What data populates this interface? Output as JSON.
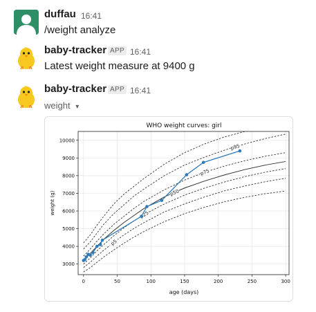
{
  "messages": [
    {
      "user": "duffau",
      "time": "16:41",
      "text": "/weight analyze"
    },
    {
      "user": "baby-tracker",
      "badge": "APP",
      "time": "16:41",
      "text": "Latest weight measure at 9400 g"
    },
    {
      "user": "baby-tracker",
      "badge": "APP",
      "time": "16:41",
      "file_label": "weight",
      "file_caret": "▾"
    }
  ],
  "chart_data": {
    "type": "line",
    "title": "WHO weight curves: girl",
    "xlabel": "age (days)",
    "ylabel": "weight (g)",
    "xlim": [
      -8,
      305
    ],
    "ylim": [
      2400,
      10500
    ],
    "xticks": [
      0,
      50,
      100,
      150,
      200,
      250,
      300
    ],
    "yticks": [
      3000,
      4000,
      5000,
      6000,
      7000,
      8000,
      9000,
      10000
    ],
    "grid": true,
    "curves": [
      {
        "label": "",
        "style": "dashed",
        "x": [
          0,
          10,
          20,
          30,
          45,
          60,
          75,
          90,
          120,
          150,
          180,
          210,
          240,
          270,
          300
        ],
        "y": [
          2550,
          2800,
          3100,
          3400,
          3800,
          4180,
          4530,
          4850,
          5400,
          5850,
          6220,
          6530,
          6780,
          6980,
          7130
        ]
      },
      {
        "label": "p5",
        "style": "dashed",
        "x": [
          0,
          10,
          20,
          30,
          45,
          60,
          75,
          90,
          120,
          150,
          180,
          210,
          240,
          270,
          300
        ],
        "y": [
          2800,
          3100,
          3450,
          3780,
          4230,
          4650,
          5020,
          5350,
          5950,
          6400,
          6800,
          7150,
          7420,
          7660,
          7850
        ]
      },
      {
        "label": "p25",
        "style": "dashed",
        "x": [
          0,
          10,
          20,
          30,
          45,
          60,
          75,
          90,
          120,
          150,
          180,
          210,
          240,
          270,
          300
        ],
        "y": [
          3000,
          3350,
          3750,
          4100,
          4600,
          5050,
          5450,
          5800,
          6400,
          6900,
          7300,
          7650,
          7950,
          8200,
          8400
        ]
      },
      {
        "label": "p50",
        "style": "solid",
        "x": [
          0,
          10,
          20,
          30,
          45,
          60,
          75,
          90,
          120,
          150,
          180,
          210,
          240,
          270,
          300
        ],
        "y": [
          3200,
          3600,
          4000,
          4400,
          4900,
          5350,
          5750,
          6150,
          6800,
          7300,
          7700,
          8050,
          8350,
          8600,
          8800
        ]
      },
      {
        "label": "p75",
        "style": "dashed",
        "x": [
          0,
          10,
          20,
          30,
          45,
          60,
          75,
          90,
          120,
          150,
          180,
          210,
          240,
          270,
          300
        ],
        "y": [
          3450,
          3850,
          4300,
          4700,
          5250,
          5700,
          6150,
          6550,
          7200,
          7750,
          8200,
          8550,
          8850,
          9100,
          9300
        ]
      },
      {
        "label": "p95",
        "style": "dashed",
        "x": [
          0,
          10,
          20,
          30,
          45,
          60,
          75,
          90,
          120,
          150,
          180,
          210,
          240,
          270,
          300
        ],
        "y": [
          3850,
          4250,
          4750,
          5250,
          5850,
          6350,
          6850,
          7250,
          8000,
          8600,
          9050,
          9450,
          9800,
          10100,
          10350
        ]
      },
      {
        "label": "",
        "style": "dashed",
        "x": [
          0,
          10,
          20,
          30,
          45,
          60,
          75,
          90,
          120,
          150,
          180,
          210,
          240,
          270,
          300
        ],
        "y": [
          4200,
          4650,
          5200,
          5700,
          6400,
          6950,
          7400,
          7850,
          8650,
          9300,
          9800,
          10200,
          10500,
          10800,
          11050
        ]
      }
    ],
    "series": [
      {
        "name": "weight",
        "x": [
          0,
          2,
          4,
          7,
          10,
          14,
          20,
          25,
          28,
          86,
          94,
          116,
          153,
          178,
          232
        ],
        "y": [
          3200,
          3250,
          3400,
          3550,
          3500,
          3650,
          4000,
          4100,
          4350,
          5700,
          6250,
          6600,
          8050,
          8750,
          9400
        ]
      }
    ]
  }
}
